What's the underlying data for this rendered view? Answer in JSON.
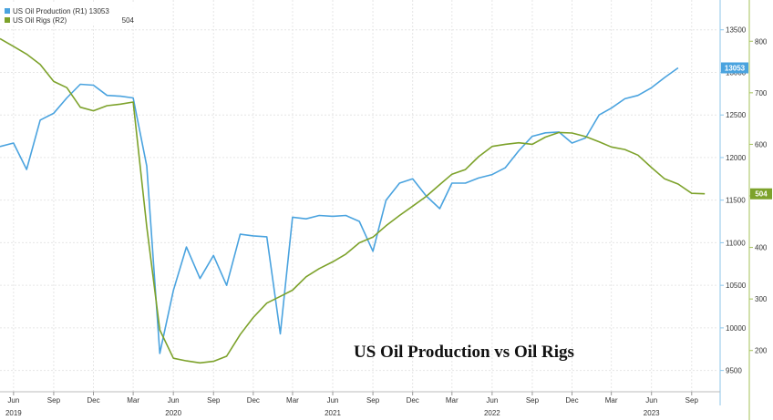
{
  "chart_data": {
    "type": "line",
    "title": "US Oil Production vs Oil Rigs",
    "legend_position": "top-left",
    "grid": true,
    "x_axis": {
      "range": [
        "2019-05-01",
        "2023-11-01"
      ],
      "month_ticks": [
        {
          "label": "Jun",
          "date": "2019-06-01"
        },
        {
          "label": "Sep",
          "date": "2019-09-01"
        },
        {
          "label": "Dec",
          "date": "2019-12-01"
        },
        {
          "label": "Mar",
          "date": "2020-03-01"
        },
        {
          "label": "Jun",
          "date": "2020-06-01"
        },
        {
          "label": "Sep",
          "date": "2020-09-01"
        },
        {
          "label": "Dec",
          "date": "2020-12-01"
        },
        {
          "label": "Mar",
          "date": "2021-03-01"
        },
        {
          "label": "Jun",
          "date": "2021-06-01"
        },
        {
          "label": "Sep",
          "date": "2021-09-01"
        },
        {
          "label": "Dec",
          "date": "2021-12-01"
        },
        {
          "label": "Mar",
          "date": "2022-03-01"
        },
        {
          "label": "Jun",
          "date": "2022-06-01"
        },
        {
          "label": "Sep",
          "date": "2022-09-01"
        },
        {
          "label": "Dec",
          "date": "2022-12-01"
        },
        {
          "label": "Mar",
          "date": "2023-03-01"
        },
        {
          "label": "Jun",
          "date": "2023-06-01"
        },
        {
          "label": "Sep",
          "date": "2023-09-01"
        }
      ],
      "year_ticks": [
        {
          "label": "2019",
          "date": "2019-06-01"
        },
        {
          "label": "2020",
          "date": "2020-06-01"
        },
        {
          "label": "2021",
          "date": "2021-06-01"
        },
        {
          "label": "2022",
          "date": "2022-06-01"
        },
        {
          "label": "2023",
          "date": "2023-06-01"
        }
      ]
    },
    "y_axis_right1": {
      "series": "US Oil Production",
      "range": [
        9250,
        13850
      ],
      "ticks": [
        9500,
        10000,
        10500,
        11000,
        11500,
        12000,
        12500,
        13000,
        13500
      ],
      "tick_labels": [
        "9500",
        "10000",
        "10500",
        "11000",
        "11500",
        "12000",
        "12500",
        "13000",
        "13500"
      ]
    },
    "y_axis_right2": {
      "series": "US Oil Rigs",
      "range": [
        120,
        880
      ],
      "ticks": [
        200,
        300,
        400,
        500,
        600,
        700,
        800
      ],
      "tick_labels": [
        "200",
        "300",
        "400",
        "500",
        "600",
        "700",
        "800"
      ]
    },
    "series": [
      {
        "name": "US Oil Production",
        "legend_label": "US Oil Production   (R1)  13053",
        "axis": "R1",
        "color": "#4aa3df",
        "last_value": "13053",
        "points": [
          [
            "2019-05-01",
            12130
          ],
          [
            "2019-06-01",
            12170
          ],
          [
            "2019-07-01",
            11860
          ],
          [
            "2019-08-01",
            12440
          ],
          [
            "2019-09-01",
            12520
          ],
          [
            "2019-10-01",
            12700
          ],
          [
            "2019-11-01",
            12860
          ],
          [
            "2019-12-01",
            12850
          ],
          [
            "2020-01-01",
            12730
          ],
          [
            "2020-02-01",
            12720
          ],
          [
            "2020-03-01",
            12700
          ],
          [
            "2020-04-01",
            11900
          ],
          [
            "2020-05-01",
            9700
          ],
          [
            "2020-06-01",
            10440
          ],
          [
            "2020-07-01",
            10950
          ],
          [
            "2020-08-01",
            10580
          ],
          [
            "2020-09-01",
            10850
          ],
          [
            "2020-10-01",
            10500
          ],
          [
            "2020-11-01",
            11100
          ],
          [
            "2020-12-01",
            11080
          ],
          [
            "2021-01-01",
            11070
          ],
          [
            "2021-02-01",
            9930
          ],
          [
            "2021-03-01",
            11300
          ],
          [
            "2021-04-01",
            11280
          ],
          [
            "2021-05-01",
            11320
          ],
          [
            "2021-06-01",
            11310
          ],
          [
            "2021-07-01",
            11320
          ],
          [
            "2021-08-01",
            11250
          ],
          [
            "2021-09-01",
            10900
          ],
          [
            "2021-10-01",
            11500
          ],
          [
            "2021-11-01",
            11700
          ],
          [
            "2021-12-01",
            11750
          ],
          [
            "2022-01-01",
            11550
          ],
          [
            "2022-02-01",
            11400
          ],
          [
            "2022-03-01",
            11700
          ],
          [
            "2022-04-01",
            11700
          ],
          [
            "2022-05-01",
            11760
          ],
          [
            "2022-06-01",
            11800
          ],
          [
            "2022-07-01",
            11880
          ],
          [
            "2022-08-01",
            12080
          ],
          [
            "2022-09-01",
            12250
          ],
          [
            "2022-10-01",
            12290
          ],
          [
            "2022-11-01",
            12300
          ],
          [
            "2022-12-01",
            12170
          ],
          [
            "2023-01-01",
            12230
          ],
          [
            "2023-02-01",
            12500
          ],
          [
            "2023-03-01",
            12580
          ],
          [
            "2023-04-01",
            12690
          ],
          [
            "2023-05-01",
            12730
          ],
          [
            "2023-06-01",
            12820
          ],
          [
            "2023-07-01",
            12940
          ],
          [
            "2023-08-01",
            13053
          ]
        ]
      },
      {
        "name": "US Oil Rigs",
        "legend_label": "US Oil Rigs   (R2)",
        "axis": "R2",
        "color": "#7da22b",
        "last_value": "504",
        "points": [
          [
            "2019-05-01",
            805
          ],
          [
            "2019-06-01",
            790
          ],
          [
            "2019-07-01",
            775
          ],
          [
            "2019-08-01",
            755
          ],
          [
            "2019-09-01",
            722
          ],
          [
            "2019-10-01",
            710
          ],
          [
            "2019-11-01",
            672
          ],
          [
            "2019-12-01",
            665
          ],
          [
            "2020-01-01",
            675
          ],
          [
            "2020-02-01",
            678
          ],
          [
            "2020-03-01",
            682
          ],
          [
            "2020-04-01",
            440
          ],
          [
            "2020-05-01",
            240
          ],
          [
            "2020-06-01",
            185
          ],
          [
            "2020-07-01",
            180
          ],
          [
            "2020-08-01",
            176
          ],
          [
            "2020-09-01",
            179
          ],
          [
            "2020-10-01",
            189
          ],
          [
            "2020-11-01",
            231
          ],
          [
            "2020-12-01",
            264
          ],
          [
            "2021-01-01",
            292
          ],
          [
            "2021-02-01",
            305
          ],
          [
            "2021-03-01",
            317
          ],
          [
            "2021-04-01",
            343
          ],
          [
            "2021-05-01",
            359
          ],
          [
            "2021-06-01",
            372
          ],
          [
            "2021-07-01",
            387
          ],
          [
            "2021-08-01",
            409
          ],
          [
            "2021-09-01",
            420
          ],
          [
            "2021-10-01",
            442
          ],
          [
            "2021-11-01",
            462
          ],
          [
            "2021-12-01",
            480
          ],
          [
            "2022-01-01",
            499
          ],
          [
            "2022-02-01",
            522
          ],
          [
            "2022-03-01",
            542
          ],
          [
            "2022-04-01",
            551
          ],
          [
            "2022-05-01",
            576
          ],
          [
            "2022-06-01",
            596
          ],
          [
            "2022-07-01",
            600
          ],
          [
            "2022-08-01",
            603
          ],
          [
            "2022-09-01",
            600
          ],
          [
            "2022-10-01",
            614
          ],
          [
            "2022-11-01",
            623
          ],
          [
            "2022-12-01",
            622
          ],
          [
            "2023-01-01",
            615
          ],
          [
            "2023-02-01",
            605
          ],
          [
            "2023-03-01",
            595
          ],
          [
            "2023-04-01",
            590
          ],
          [
            "2023-05-01",
            579
          ],
          [
            "2023-06-01",
            555
          ],
          [
            "2023-07-01",
            533
          ],
          [
            "2023-08-01",
            523
          ],
          [
            "2023-09-01",
            505
          ],
          [
            "2023-10-01",
            504
          ]
        ]
      }
    ]
  }
}
